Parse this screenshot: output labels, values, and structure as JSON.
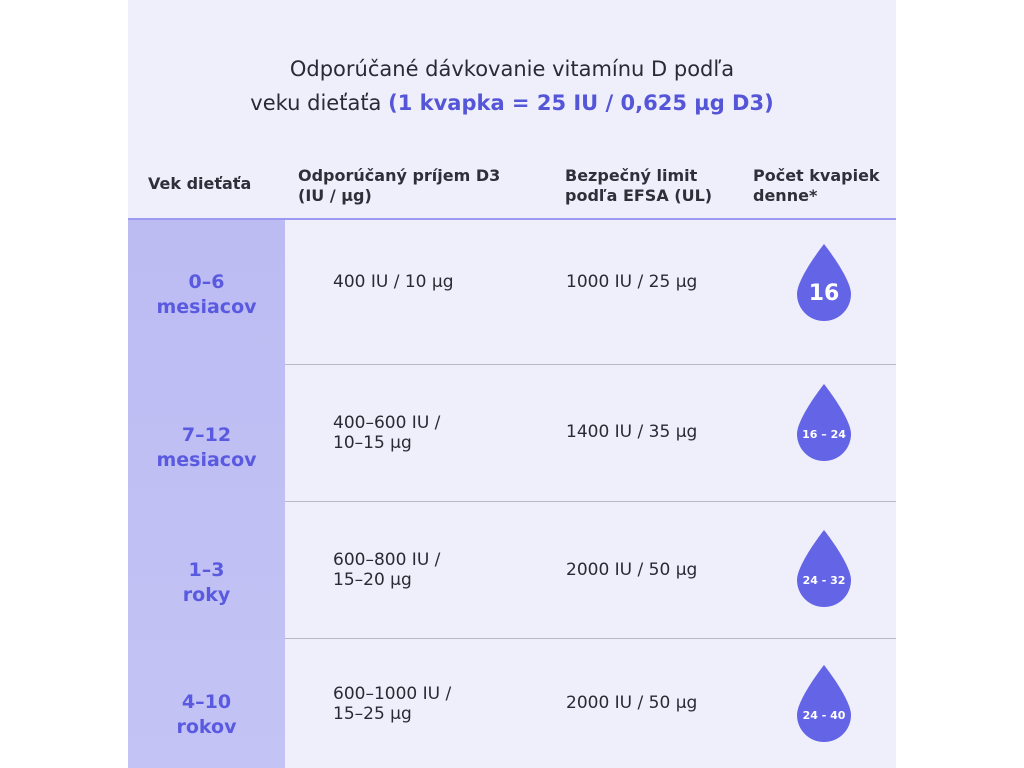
{
  "title": {
    "line1": "Odporúčané dávkovanie vitamínu D podľa",
    "line2_prefix": "veku dieťaťa ",
    "line2_highlight": "(1 kvapka = 25 IU / 0,625 µg D3)"
  },
  "headers": {
    "age": "Vek dieťaťa",
    "intake_l1": "Odporúčaný príjem D3",
    "intake_l2": "(IU / µg)",
    "limit_l1": "Bezpečný limit",
    "limit_l2": "podľa EFSA (UL)",
    "drops_l1": "Počet kvapiek",
    "drops_l2": "denne*"
  },
  "rows": [
    {
      "age_l1": "0–6",
      "age_l2": "mesiacov",
      "intake_l1": "400 IU / 10 µg",
      "intake_l2": "",
      "limit": "1000 IU / 25 µg",
      "drops": "16"
    },
    {
      "age_l1": "7–12",
      "age_l2": "mesiacov",
      "intake_l1": "400–600 IU /",
      "intake_l2": "10–15 µg",
      "limit": "1400 IU / 35 µg",
      "drops": "16 – 24"
    },
    {
      "age_l1": "1–3",
      "age_l2": "roky",
      "intake_l1": "600–800 IU /",
      "intake_l2": "15–20 µg",
      "limit": "2000 IU / 50 µg",
      "drops": "24 - 32"
    },
    {
      "age_l1": "4–10",
      "age_l2": "rokov",
      "intake_l1": "600–1000 IU /",
      "intake_l2": "15–25 µg",
      "limit": "2000 IU / 50 µg",
      "drops": "24 - 40"
    }
  ],
  "colors": {
    "accent": "#5555d8",
    "drop": "#6464e6",
    "age_column": "#bcbcf3",
    "panel": "#efeffb"
  }
}
